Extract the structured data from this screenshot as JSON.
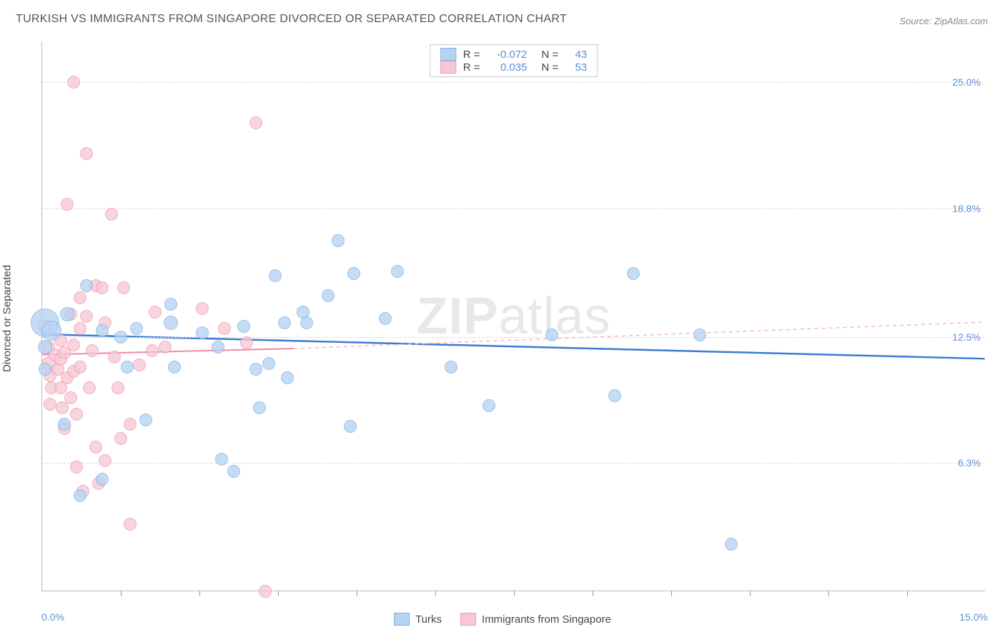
{
  "title": "TURKISH VS IMMIGRANTS FROM SINGAPORE DIVORCED OR SEPARATED CORRELATION CHART",
  "source": "Source: ZipAtlas.com",
  "watermark": {
    "zip": "ZIP",
    "atlas": "atlas"
  },
  "y_axis_title": "Divorced or Separated",
  "x_axis": {
    "min": 0.0,
    "max": 15.0,
    "left_label": "0.0%",
    "right_label": "15.0%",
    "tick_positions": [
      1.25,
      2.5,
      3.75,
      5.0,
      6.25,
      7.5,
      8.75,
      10.0,
      11.25,
      12.5,
      13.75
    ]
  },
  "y_axis": {
    "min": 0.0,
    "max": 27.0,
    "ticks": [
      {
        "v": 6.3,
        "label": "6.3%"
      },
      {
        "v": 12.5,
        "label": "12.5%"
      },
      {
        "v": 18.8,
        "label": "18.8%"
      },
      {
        "v": 25.0,
        "label": "25.0%"
      }
    ]
  },
  "series": {
    "turks": {
      "name": "Turks",
      "color_fill": "#b7d3f2",
      "color_stroke": "#7fb1e8",
      "point_radius": 10,
      "trend": {
        "y_at_xmin": 12.6,
        "y_at_xmax": 11.4,
        "color": "#3a7bd5",
        "width": 2.5,
        "dash": "none"
      }
    },
    "singapore": {
      "name": "Immigrants from Singapore",
      "color_fill": "#f7c8d3",
      "color_stroke": "#f09cb0",
      "point_radius": 10,
      "trend_solid": {
        "x_from": 0.0,
        "x_to": 4.0,
        "y_from": 11.6,
        "y_to": 11.9,
        "color": "#ef8aa3",
        "width": 2,
        "dash": "none"
      },
      "trend_dash": {
        "x_from": 4.0,
        "x_to": 15.0,
        "y_from": 11.9,
        "y_to": 13.2,
        "color": "#f3b7c6",
        "width": 1.5,
        "dash": "5,5"
      }
    }
  },
  "legend_stats": [
    {
      "swatch_fill": "#b7d3f2",
      "swatch_stroke": "#7fb1e8",
      "r_label": "R =",
      "r_val": "-0.072",
      "n_label": "N =",
      "n_val": "43"
    },
    {
      "swatch_fill": "#f7c8d3",
      "swatch_stroke": "#f09cb0",
      "r_label": "R =",
      "r_val": "0.035",
      "n_label": "N =",
      "n_val": "53"
    }
  ],
  "points_turks": [
    {
      "x": 0.05,
      "y": 13.2,
      "r": 20
    },
    {
      "x": 0.15,
      "y": 12.8,
      "r": 14
    },
    {
      "x": 0.05,
      "y": 12.0,
      "r": 10
    },
    {
      "x": 0.05,
      "y": 10.9,
      "r": 9
    },
    {
      "x": 0.4,
      "y": 13.6,
      "r": 10
    },
    {
      "x": 0.35,
      "y": 8.2,
      "r": 9
    },
    {
      "x": 0.6,
      "y": 4.7,
      "r": 9
    },
    {
      "x": 0.7,
      "y": 15.0,
      "r": 9
    },
    {
      "x": 0.95,
      "y": 5.5,
      "r": 9
    },
    {
      "x": 0.95,
      "y": 12.8,
      "r": 9
    },
    {
      "x": 1.25,
      "y": 12.5,
      "r": 9
    },
    {
      "x": 1.35,
      "y": 11.0,
      "r": 9
    },
    {
      "x": 1.5,
      "y": 12.9,
      "r": 9
    },
    {
      "x": 1.65,
      "y": 8.4,
      "r": 9
    },
    {
      "x": 2.05,
      "y": 13.2,
      "r": 10
    },
    {
      "x": 2.05,
      "y": 14.1,
      "r": 9
    },
    {
      "x": 2.1,
      "y": 11.0,
      "r": 9
    },
    {
      "x": 2.55,
      "y": 12.7,
      "r": 9
    },
    {
      "x": 2.8,
      "y": 12.0,
      "r": 9
    },
    {
      "x": 2.85,
      "y": 6.5,
      "r": 9
    },
    {
      "x": 3.05,
      "y": 5.9,
      "r": 9
    },
    {
      "x": 3.2,
      "y": 13.0,
      "r": 9
    },
    {
      "x": 3.4,
      "y": 10.9,
      "r": 9
    },
    {
      "x": 3.45,
      "y": 9.0,
      "r": 9
    },
    {
      "x": 3.6,
      "y": 11.2,
      "r": 9
    },
    {
      "x": 3.7,
      "y": 15.5,
      "r": 9
    },
    {
      "x": 3.85,
      "y": 13.2,
      "r": 9
    },
    {
      "x": 3.9,
      "y": 10.5,
      "r": 9
    },
    {
      "x": 4.15,
      "y": 13.7,
      "r": 9
    },
    {
      "x": 4.2,
      "y": 13.2,
      "r": 9
    },
    {
      "x": 4.55,
      "y": 14.5,
      "r": 9
    },
    {
      "x": 4.7,
      "y": 17.2,
      "r": 9
    },
    {
      "x": 4.9,
      "y": 8.1,
      "r": 9
    },
    {
      "x": 4.95,
      "y": 15.6,
      "r": 9
    },
    {
      "x": 5.45,
      "y": 13.4,
      "r": 9
    },
    {
      "x": 5.65,
      "y": 15.7,
      "r": 9
    },
    {
      "x": 6.5,
      "y": 11.0,
      "r": 9
    },
    {
      "x": 7.1,
      "y": 9.1,
      "r": 9
    },
    {
      "x": 8.1,
      "y": 12.6,
      "r": 9
    },
    {
      "x": 9.1,
      "y": 9.6,
      "r": 9
    },
    {
      "x": 9.4,
      "y": 15.6,
      "r": 9
    },
    {
      "x": 10.45,
      "y": 12.6,
      "r": 9
    },
    {
      "x": 10.95,
      "y": 2.3,
      "r": 9
    }
  ],
  "points_singapore": [
    {
      "x": 0.05,
      "y": 13.0,
      "r": 10
    },
    {
      "x": 0.1,
      "y": 12.0,
      "r": 9
    },
    {
      "x": 0.1,
      "y": 11.2,
      "r": 10
    },
    {
      "x": 0.12,
      "y": 10.6,
      "r": 9
    },
    {
      "x": 0.15,
      "y": 10.0,
      "r": 9
    },
    {
      "x": 0.12,
      "y": 9.2,
      "r": 9
    },
    {
      "x": 0.2,
      "y": 11.6,
      "r": 9
    },
    {
      "x": 0.25,
      "y": 10.9,
      "r": 9
    },
    {
      "x": 0.3,
      "y": 12.3,
      "r": 9
    },
    {
      "x": 0.3,
      "y": 11.4,
      "r": 9
    },
    {
      "x": 0.3,
      "y": 10.0,
      "r": 9
    },
    {
      "x": 0.32,
      "y": 9.0,
      "r": 9
    },
    {
      "x": 0.35,
      "y": 8.0,
      "r": 9
    },
    {
      "x": 0.35,
      "y": 11.7,
      "r": 9
    },
    {
      "x": 0.4,
      "y": 10.5,
      "r": 9
    },
    {
      "x": 0.4,
      "y": 19.0,
      "r": 9
    },
    {
      "x": 0.45,
      "y": 13.6,
      "r": 9
    },
    {
      "x": 0.45,
      "y": 9.5,
      "r": 9
    },
    {
      "x": 0.5,
      "y": 25.0,
      "r": 9
    },
    {
      "x": 0.5,
      "y": 12.1,
      "r": 9
    },
    {
      "x": 0.5,
      "y": 10.8,
      "r": 9
    },
    {
      "x": 0.55,
      "y": 6.1,
      "r": 9
    },
    {
      "x": 0.55,
      "y": 8.7,
      "r": 9
    },
    {
      "x": 0.6,
      "y": 14.4,
      "r": 9
    },
    {
      "x": 0.6,
      "y": 12.9,
      "r": 9
    },
    {
      "x": 0.6,
      "y": 11.0,
      "r": 9
    },
    {
      "x": 0.65,
      "y": 4.9,
      "r": 9
    },
    {
      "x": 0.7,
      "y": 21.5,
      "r": 9
    },
    {
      "x": 0.7,
      "y": 13.5,
      "r": 9
    },
    {
      "x": 0.75,
      "y": 10.0,
      "r": 9
    },
    {
      "x": 0.8,
      "y": 11.8,
      "r": 9
    },
    {
      "x": 0.85,
      "y": 15.0,
      "r": 9
    },
    {
      "x": 0.85,
      "y": 7.1,
      "r": 9
    },
    {
      "x": 0.9,
      "y": 5.3,
      "r": 9
    },
    {
      "x": 0.95,
      "y": 14.9,
      "r": 9
    },
    {
      "x": 1.0,
      "y": 13.2,
      "r": 9
    },
    {
      "x": 1.0,
      "y": 6.4,
      "r": 9
    },
    {
      "x": 1.1,
      "y": 18.5,
      "r": 9
    },
    {
      "x": 1.15,
      "y": 11.5,
      "r": 9
    },
    {
      "x": 1.2,
      "y": 10.0,
      "r": 9
    },
    {
      "x": 1.25,
      "y": 7.5,
      "r": 9
    },
    {
      "x": 1.3,
      "y": 14.9,
      "r": 9
    },
    {
      "x": 1.4,
      "y": 8.2,
      "r": 9
    },
    {
      "x": 1.4,
      "y": 3.3,
      "r": 9
    },
    {
      "x": 1.55,
      "y": 11.1,
      "r": 9
    },
    {
      "x": 1.75,
      "y": 11.8,
      "r": 9
    },
    {
      "x": 1.8,
      "y": 13.7,
      "r": 9
    },
    {
      "x": 1.95,
      "y": 12.0,
      "r": 9
    },
    {
      "x": 2.55,
      "y": 13.9,
      "r": 9
    },
    {
      "x": 2.9,
      "y": 12.9,
      "r": 9
    },
    {
      "x": 3.25,
      "y": 12.2,
      "r": 9
    },
    {
      "x": 3.4,
      "y": 23.0,
      "r": 9
    },
    {
      "x": 3.55,
      "y": 0.0,
      "r": 9
    }
  ]
}
